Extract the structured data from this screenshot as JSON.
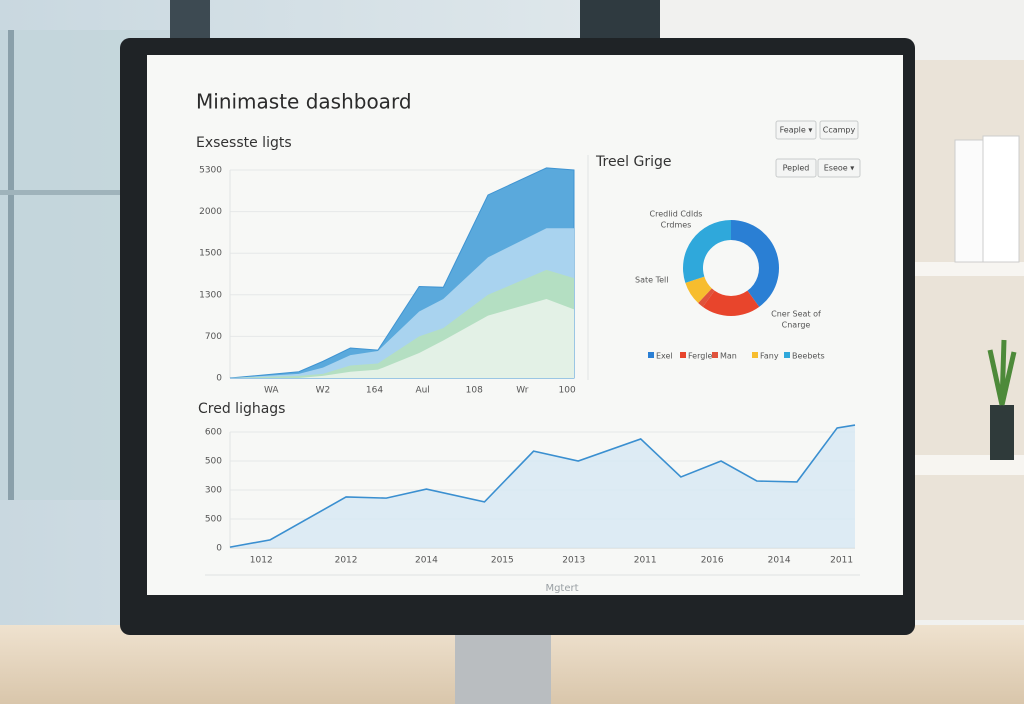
{
  "monitor_brand": "Mgtert",
  "dashboard": {
    "title": "Minimaste dashboard",
    "buttons": [
      "Feaple ▾",
      "Ccampy",
      "Pepled",
      "Eseoe ▾"
    ],
    "charts": [
      {
        "type": "area",
        "title": "Exsesste ligts",
        "x": [
          0,
          2.0,
          2.7,
          3.5,
          4.3,
          5.5,
          6.2,
          7.5,
          9.2,
          10
        ],
        "xlim": [
          0,
          10
        ],
        "xticks": [
          {
            "value": 1.2,
            "label": "WA"
          },
          {
            "value": 2.7,
            "label": "W2"
          },
          {
            "value": 4.2,
            "label": "164"
          },
          {
            "value": 5.6,
            "label": "Aul"
          },
          {
            "value": 7.1,
            "label": "108"
          },
          {
            "value": 8.5,
            "label": "Wr"
          },
          {
            "value": 9.8,
            "label": "100"
          }
        ],
        "ylim": [
          0,
          5
        ],
        "yticks": [
          {
            "value": 0,
            "label": "0"
          },
          {
            "value": 1,
            "label": "700"
          },
          {
            "value": 2,
            "label": "1300"
          },
          {
            "value": 3,
            "label": "1500"
          },
          {
            "value": 4,
            "label": "2000"
          },
          {
            "value": 5,
            "label": "5300"
          }
        ],
        "grid": true,
        "series": [
          {
            "color": "#5aa9dc",
            "values": [
              0,
              0.15,
              0.4,
              0.72,
              0.67,
              2.2,
              2.18,
              4.4,
              5.05,
              5.0
            ]
          },
          {
            "color": "#a9d3ef",
            "values": [
              0,
              0.1,
              0.25,
              0.55,
              0.65,
              1.6,
              1.9,
              2.9,
              3.6,
              3.6
            ]
          },
          {
            "color": "#b4dfc2",
            "values": [
              0,
              0.05,
              0.1,
              0.3,
              0.35,
              1.0,
              1.2,
              2.0,
              2.6,
              2.4
            ]
          },
          {
            "color": "#e3f1e6",
            "values": [
              0,
              0,
              0.05,
              0.15,
              0.2,
              0.6,
              0.9,
              1.5,
              1.9,
              1.65
            ]
          }
        ]
      },
      {
        "type": "pie",
        "title": "Treel Grige",
        "categories": [
          "Exel",
          "Fergle",
          "Man",
          "Fany",
          "Beebets"
        ],
        "values": [
          40,
          20,
          2,
          8,
          30
        ],
        "colors": [
          "#2a7fd4",
          "#e8452c",
          "#e0533c",
          "#f7bd2e",
          "#2fa8db"
        ],
        "annotations": [
          "Credlid Cdlds\nCrdmes",
          "Sate Tell",
          "Cner Seat of\nCnarge"
        ]
      },
      {
        "type": "line",
        "title": "Cred lighags",
        "x": [
          0,
          0.9,
          2.6,
          3.5,
          4.4,
          5.7,
          6.8,
          7.8,
          9.2,
          10.1,
          11.0,
          11.8,
          12.7,
          13.6,
          14
        ],
        "xlim": [
          0,
          14
        ],
        "xticks": [
          {
            "value": 0.7,
            "label": "1012"
          },
          {
            "value": 2.6,
            "label": "2012"
          },
          {
            "value": 4.4,
            "label": "2014"
          },
          {
            "value": 6.1,
            "label": "2015"
          },
          {
            "value": 7.7,
            "label": "2013"
          },
          {
            "value": 9.3,
            "label": "2011"
          },
          {
            "value": 10.8,
            "label": "2016"
          },
          {
            "value": 12.3,
            "label": "2014"
          },
          {
            "value": 13.7,
            "label": "2011"
          }
        ],
        "ylim": [
          0,
          4
        ],
        "yticks": [
          {
            "value": 0,
            "label": "0"
          },
          {
            "value": 1,
            "label": "500"
          },
          {
            "value": 2,
            "label": "300"
          },
          {
            "value": 3,
            "label": "500"
          },
          {
            "value": 4,
            "label": "600"
          }
        ],
        "grid": true,
        "color": "#3a8fd0",
        "values": [
          0.03,
          0.28,
          1.76,
          1.72,
          2.03,
          1.59,
          3.34,
          3.0,
          3.76,
          2.45,
          3.0,
          2.31,
          2.28,
          4.14,
          4.24
        ]
      }
    ]
  }
}
